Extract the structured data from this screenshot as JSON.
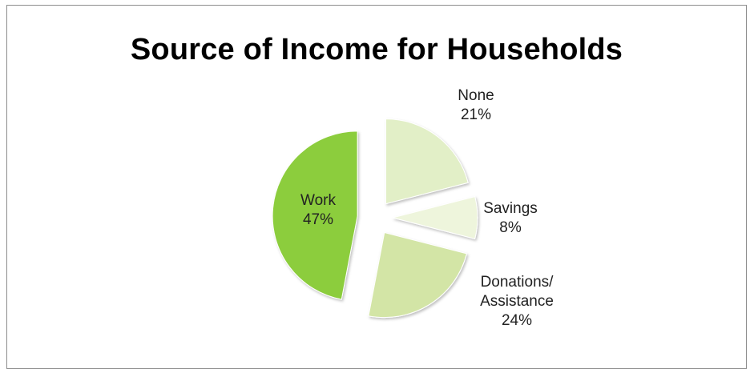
{
  "chart_data": {
    "type": "pie",
    "title": "Source of Income for Households",
    "slices": [
      {
        "label": [
          "None"
        ],
        "percent_label": "21%",
        "value": 21,
        "color": "#e2efc7"
      },
      {
        "label": [
          "Savings"
        ],
        "percent_label": "8%",
        "value": 8,
        "color": "#eef5dc"
      },
      {
        "label": [
          "Donations/",
          "Assistance"
        ],
        "percent_label": "24%",
        "value": 24,
        "color": "#d3e5a6"
      },
      {
        "label": [
          "Work"
        ],
        "percent_label": "47%",
        "value": 47,
        "color": "#8ccd3c"
      }
    ],
    "start_angle_deg": 0,
    "direction": "clockwise",
    "exploded": true,
    "legend": "none"
  }
}
